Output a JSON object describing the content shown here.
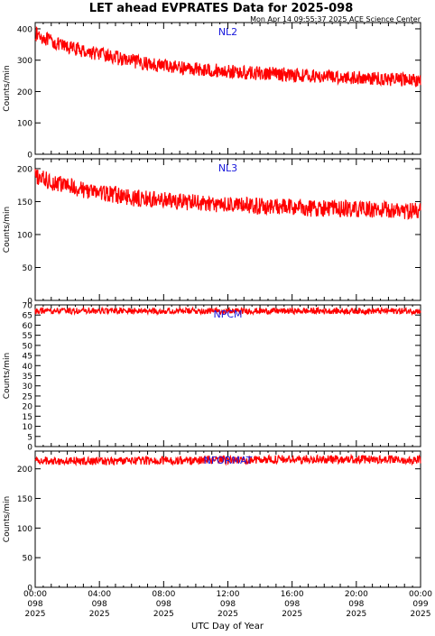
{
  "figure": {
    "title": "LET ahead EVPRATES Data for 2025-098",
    "timestamp": "Mon Apr 14 09:55:37 2025 ACE Science Center",
    "xlabel": "UTC Day of Year"
  },
  "colors": {
    "series": "#ff0000",
    "panel_label": "#1a1adc",
    "axes": "#000000",
    "background": "#ffffff"
  },
  "chart_data": [
    {
      "type": "line",
      "panel_label": "NL2",
      "ylabel": "Counts/min",
      "ylim": [
        0,
        420
      ],
      "yticks": [
        0,
        100,
        200,
        300,
        400
      ],
      "xlim": [
        0,
        24
      ],
      "xticks": [
        {
          "hours": 0,
          "time": "00:00",
          "day": "098",
          "year": "2025"
        },
        {
          "hours": 4,
          "time": "04:00",
          "day": "098",
          "year": "2025"
        },
        {
          "hours": 8,
          "time": "08:00",
          "day": "098",
          "year": "2025"
        },
        {
          "hours": 12,
          "time": "12:00",
          "day": "098",
          "year": "2025"
        },
        {
          "hours": 16,
          "time": "16:00",
          "day": "098",
          "year": "2025"
        },
        {
          "hours": 20,
          "time": "20:00",
          "day": "098",
          "year": "2025"
        },
        {
          "hours": 24,
          "time": "00:00",
          "day": "099",
          "year": "2025"
        }
      ],
      "series": [
        {
          "color": "#ff0000",
          "x": [
            0,
            0.5,
            1,
            1.5,
            2,
            2.5,
            3,
            3.5,
            4,
            4.5,
            5,
            5.5,
            6,
            6.5,
            7,
            7.5,
            8,
            8.5,
            9,
            9.5,
            10,
            10.5,
            11,
            11.5,
            12,
            12.5,
            13,
            13.5,
            14,
            14.5,
            15,
            15.5,
            16,
            16.5,
            17,
            17.5,
            18,
            18.5,
            19,
            19.5,
            20,
            20.5,
            21,
            21.5,
            22,
            22.5,
            23,
            23.5,
            24
          ],
          "y": [
            385,
            372,
            360,
            348,
            342,
            336,
            330,
            325,
            320,
            314,
            308,
            302,
            297,
            293,
            289,
            286,
            283,
            280,
            277,
            274,
            272,
            270,
            268,
            266,
            264,
            262,
            260,
            259,
            258,
            257,
            256,
            255,
            254,
            252,
            250,
            249,
            248,
            247,
            246,
            245,
            244,
            243,
            242,
            241,
            240,
            239,
            238,
            237,
            236
          ]
        }
      ],
      "noise_amplitude": 22
    },
    {
      "type": "line",
      "panel_label": "NL3",
      "ylabel": "Counts/min",
      "ylim": [
        0,
        215
      ],
      "yticks": [
        0,
        50,
        100,
        150,
        200
      ],
      "xlim": [
        0,
        24
      ],
      "series": [
        {
          "color": "#ff0000",
          "x": [
            0,
            0.5,
            1,
            1.5,
            2,
            2.5,
            3,
            3.5,
            4,
            4.5,
            5,
            5.5,
            6,
            6.5,
            7,
            7.5,
            8,
            8.5,
            9,
            9.5,
            10,
            10.5,
            11,
            11.5,
            12,
            12.5,
            13,
            13.5,
            14,
            14.5,
            15,
            15.5,
            16,
            16.5,
            17,
            17.5,
            18,
            18.5,
            19,
            19.5,
            20,
            20.5,
            21,
            21.5,
            22,
            22.5,
            23,
            23.5,
            24
          ],
          "y": [
            188,
            184,
            180,
            177,
            174,
            171,
            168,
            166,
            164,
            162,
            160,
            158,
            156,
            155,
            154,
            153,
            152,
            151,
            150,
            149,
            148,
            147,
            146,
            146,
            145,
            145,
            144,
            144,
            143,
            143,
            142,
            142,
            141,
            141,
            140,
            140,
            140,
            139,
            139,
            139,
            138,
            138,
            138,
            137,
            137,
            137,
            136,
            136,
            136
          ]
        }
      ],
      "noise_amplitude": 13
    },
    {
      "type": "line",
      "panel_label": "NPCM",
      "ylabel": "Counts/min",
      "ylim": [
        0,
        70
      ],
      "yticks": [
        0,
        5,
        10,
        15,
        20,
        25,
        30,
        35,
        40,
        45,
        50,
        55,
        60,
        65,
        70
      ],
      "xlim": [
        0,
        24
      ],
      "series": [
        {
          "color": "#ff0000",
          "x": [
            0,
            4,
            8,
            12,
            16,
            20,
            24
          ],
          "y": [
            67,
            67,
            67,
            67,
            67,
            67,
            67
          ]
        }
      ],
      "noise_amplitude": 1.5
    },
    {
      "type": "line",
      "panel_label": "NFORMAT",
      "ylabel": "Counts/min",
      "ylim": [
        0,
        230
      ],
      "yticks": [
        0,
        50,
        100,
        150,
        200
      ],
      "xlim": [
        0,
        24
      ],
      "series": [
        {
          "color": "#ff0000",
          "x": [
            0,
            4,
            8,
            12,
            16,
            20,
            24
          ],
          "y": [
            214,
            213,
            214,
            215,
            216,
            216,
            215
          ]
        }
      ],
      "noise_amplitude": 7
    }
  ]
}
